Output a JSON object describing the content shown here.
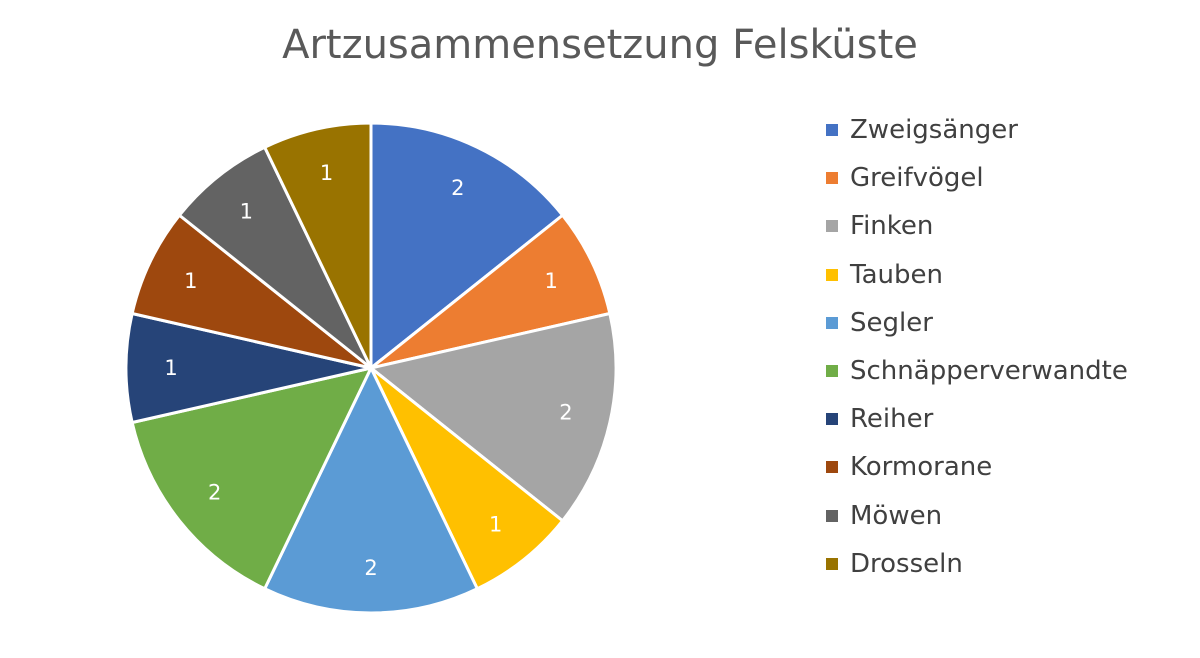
{
  "chart_data": {
    "type": "pie",
    "title": "Artzusammensetzung Felsküste",
    "legend_position": "right",
    "start_angle_deg": 0,
    "direction": "clockwise",
    "slices": [
      {
        "label": "Zweigsänger",
        "value": 2,
        "color": "#4472C4"
      },
      {
        "label": "Greifvögel",
        "value": 1,
        "color": "#ED7D31"
      },
      {
        "label": "Finken",
        "value": 2,
        "color": "#A5A5A5"
      },
      {
        "label": "Tauben",
        "value": 1,
        "color": "#FFC000"
      },
      {
        "label": "Segler",
        "value": 2,
        "color": "#5B9BD5"
      },
      {
        "label": "Schnäpperverwandte",
        "value": 2,
        "color": "#70AD47"
      },
      {
        "label": "Reiher",
        "value": 1,
        "color": "#264478"
      },
      {
        "label": "Kormorane",
        "value": 1,
        "color": "#9E480E"
      },
      {
        "label": "Möwen",
        "value": 1,
        "color": "#636363"
      },
      {
        "label": "Drosseln",
        "value": 1,
        "color": "#997300"
      }
    ]
  }
}
